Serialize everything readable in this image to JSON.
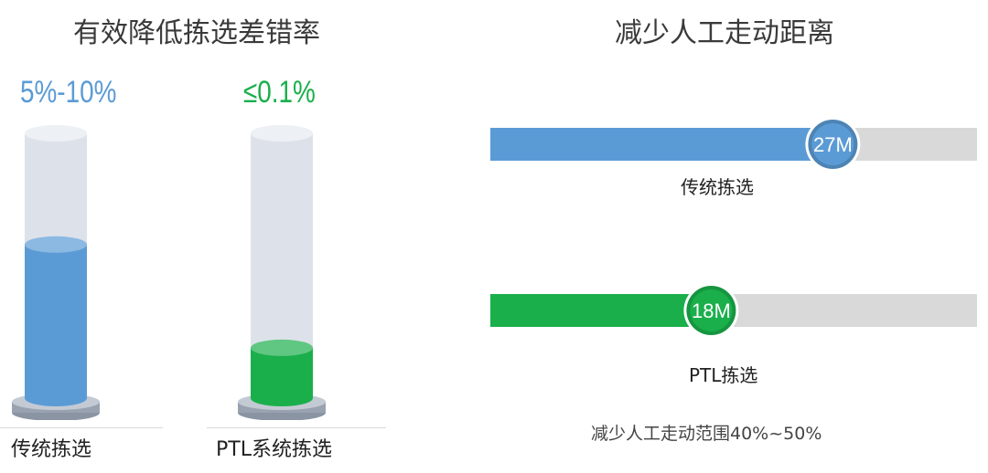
{
  "chart_data": [
    {
      "type": "bar",
      "title": "有效降低拣选差错率",
      "categories": [
        "传统拣选",
        "PTL系统拣选"
      ],
      "value_labels": [
        "5%-10%",
        "≤0.1%"
      ],
      "fill_levels": [
        0.58,
        0.19
      ],
      "colors": [
        "#5b9bd5",
        "#1aaf4b"
      ]
    },
    {
      "type": "bar",
      "title": "减少人工走动距离",
      "categories": [
        "传统拣选",
        "PTL拣选"
      ],
      "values": [
        27,
        18
      ],
      "value_labels": [
        "27M",
        "18M"
      ],
      "fill_fractions": [
        0.7,
        0.45
      ],
      "colors": [
        "#5b9bd5",
        "#1aaf4b"
      ],
      "footnote": "减少人工走动范围40%~50%"
    }
  ]
}
